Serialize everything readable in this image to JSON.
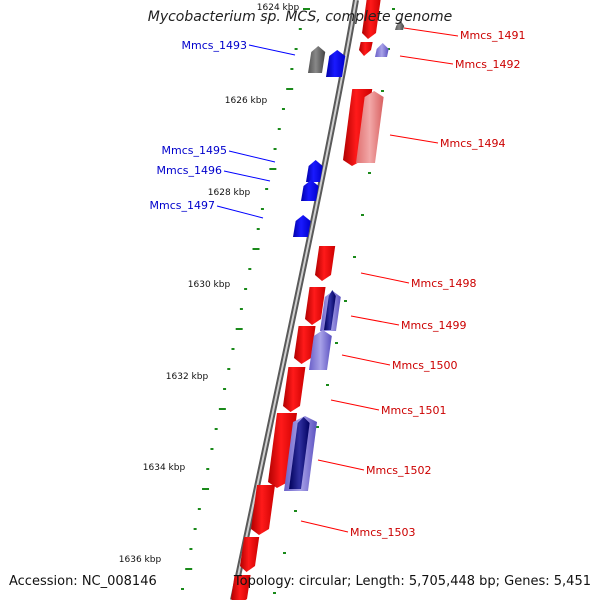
{
  "title": "Mycobacterium sp. MCS, complete genome",
  "accession": "Accession: NC_008146",
  "topology": "Topology: circular; Length: 5,705,448 bp; Genes: 5,451",
  "colors": {
    "forward_strand": "#ff0000",
    "reverse_strand": "#0000ff",
    "forward_label": "#cc0000",
    "reverse_label": "#0000cc",
    "backbone": "#888888",
    "scale_tick": "#1a8a1a"
  },
  "scale_labels": [
    "1624 kbp",
    "1626 kbp",
    "1628 kbp",
    "1630 kbp",
    "1632 kbp",
    "1634 kbp",
    "1636 kbp"
  ],
  "genes": [
    {
      "label": "Mmcs_1491",
      "strand": "forward"
    },
    {
      "label": "Mmcs_1492",
      "strand": "forward"
    },
    {
      "label": "Mmcs_1493",
      "strand": "reverse"
    },
    {
      "label": "Mmcs_1494",
      "strand": "forward"
    },
    {
      "label": "Mmcs_1495",
      "strand": "reverse"
    },
    {
      "label": "Mmcs_1496",
      "strand": "reverse"
    },
    {
      "label": "Mmcs_1497",
      "strand": "reverse"
    },
    {
      "label": "Mmcs_1498",
      "strand": "forward"
    },
    {
      "label": "Mmcs_1499",
      "strand": "forward"
    },
    {
      "label": "Mmcs_1500",
      "strand": "forward"
    },
    {
      "label": "Mmcs_1501",
      "strand": "forward"
    },
    {
      "label": "Mmcs_1502",
      "strand": "forward"
    },
    {
      "label": "Mmcs_1503",
      "strand": "forward"
    }
  ]
}
